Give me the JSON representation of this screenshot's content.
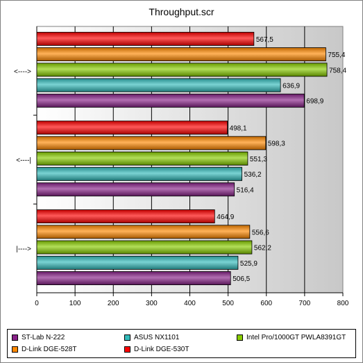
{
  "chart_data": {
    "type": "bar",
    "orientation": "horizontal",
    "title": "Throughput.scr",
    "categories": [
      "<---->",
      "<----|",
      "|---->"
    ],
    "series": [
      {
        "name": "D-Link DGE-530T",
        "color": "#ff0000",
        "values": [
          567.5,
          498.1,
          464.9
        ],
        "labels": [
          "567,5",
          "498,1",
          "464,9"
        ]
      },
      {
        "name": "D-Link DGE-528T",
        "color": "#ff8800",
        "values": [
          755.4,
          598.3,
          556.6
        ],
        "labels": [
          "755,4",
          "598,3",
          "556,6"
        ]
      },
      {
        "name": "Intel Pro/1000GT PWLA8391GT",
        "color": "#88cc00",
        "values": [
          758.4,
          551.3,
          562.2
        ],
        "labels": [
          "758,4",
          "551,3",
          "562,2"
        ]
      },
      {
        "name": "ASUS NX1101",
        "color": "#33bbbb",
        "values": [
          636.9,
          536.2,
          525.9
        ],
        "labels": [
          "636,9",
          "536,2",
          "525,9"
        ]
      },
      {
        "name": "ST-Lab N-222",
        "color": "#882288",
        "values": [
          698.9,
          516.4,
          506.5
        ],
        "labels": [
          "698,9",
          "516,4",
          "506,5"
        ]
      }
    ],
    "x_ticks": [
      "0",
      "100",
      "200",
      "300",
      "400",
      "500",
      "600",
      "700",
      "800"
    ],
    "xlim": [
      0,
      800
    ],
    "grid": true,
    "legend_position": "bottom",
    "legend_order": [
      "ST-Lab N-222",
      "ASUS NX1101",
      "Intel Pro/1000GT PWLA8391GT",
      "D-Link DGE-528T",
      "D-Link DGE-530T"
    ]
  }
}
